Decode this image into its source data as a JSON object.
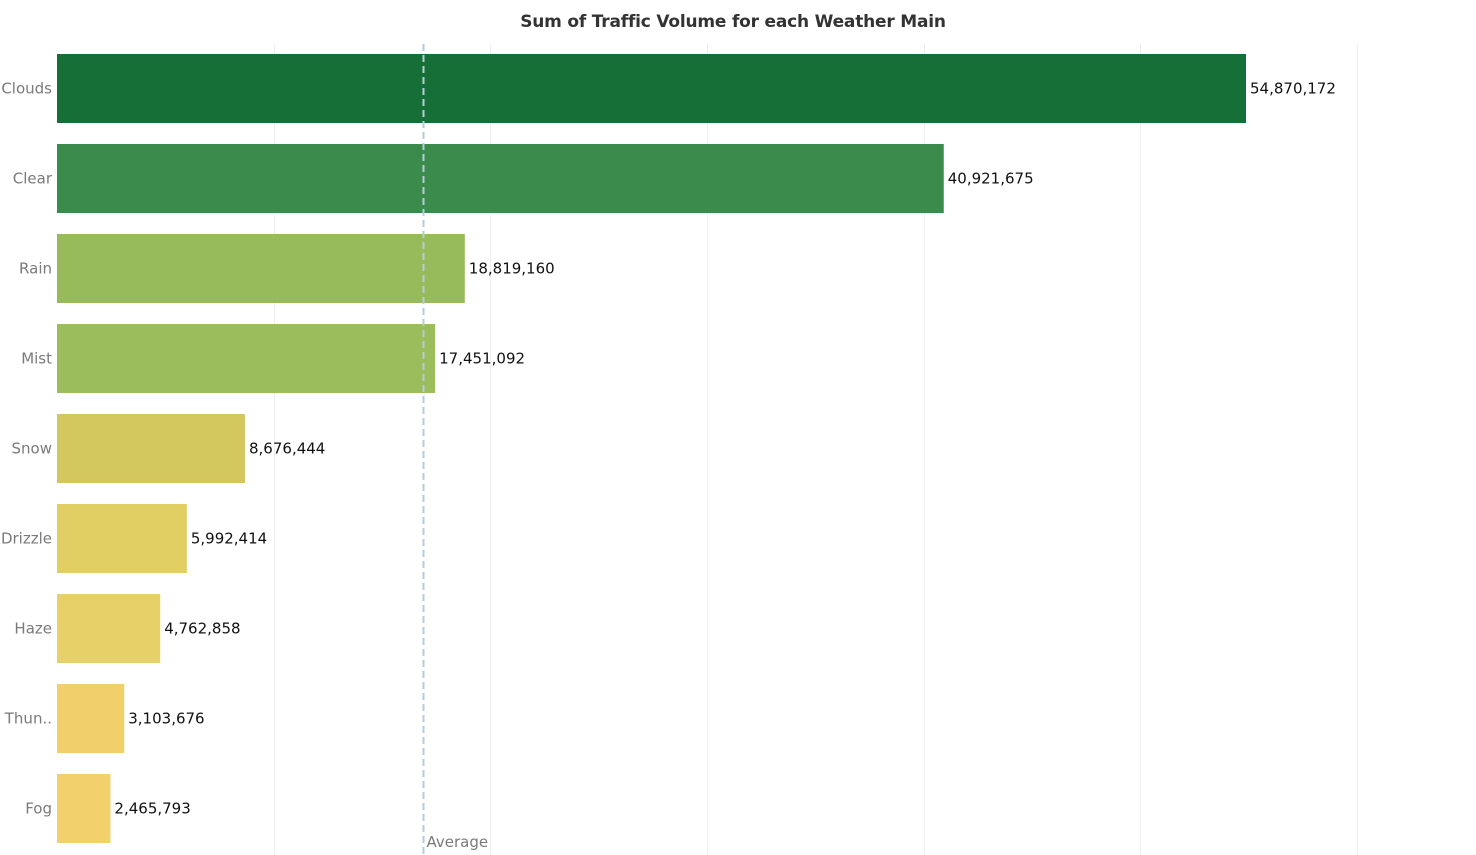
{
  "chart_data": {
    "type": "bar",
    "orientation": "horizontal",
    "title": "Sum of Traffic Volume for each Weather Main",
    "xlabel": "",
    "ylabel": "",
    "categories": [
      "Clouds",
      "Clear",
      "Rain",
      "Mist",
      "Snow",
      "Drizzle",
      "Haze",
      "Thun..",
      "Fog"
    ],
    "values": [
      54870172,
      40921675,
      18819160,
      17451092,
      8676444,
      5992414,
      4762858,
      3103676,
      2465793
    ],
    "value_labels": [
      "54,870,172",
      "40,921,675",
      "18,819,160",
      "17,451,092",
      "8,676,444",
      "5,992,414",
      "4,762,858",
      "3,103,676",
      "2,465,793"
    ],
    "bar_colors": [
      "#166f37",
      "#3a8b4c",
      "#97bb5a",
      "#9cbd5c",
      "#d3c85e",
      "#e2cf63",
      "#e8d068",
      "#f1d06b",
      "#f2d06c"
    ],
    "xlim": [
      0,
      60000000
    ],
    "gridlines": [
      10000000,
      20000000,
      30000000,
      40000000,
      50000000,
      60000000
    ],
    "grid": true,
    "reference_line": {
      "label": "Average",
      "value": 16896000,
      "color": "#b7ccd9"
    },
    "colors": {
      "grid": "#eeeeee",
      "axis_text": "#7a7a7a",
      "value_text": "#111111"
    }
  }
}
